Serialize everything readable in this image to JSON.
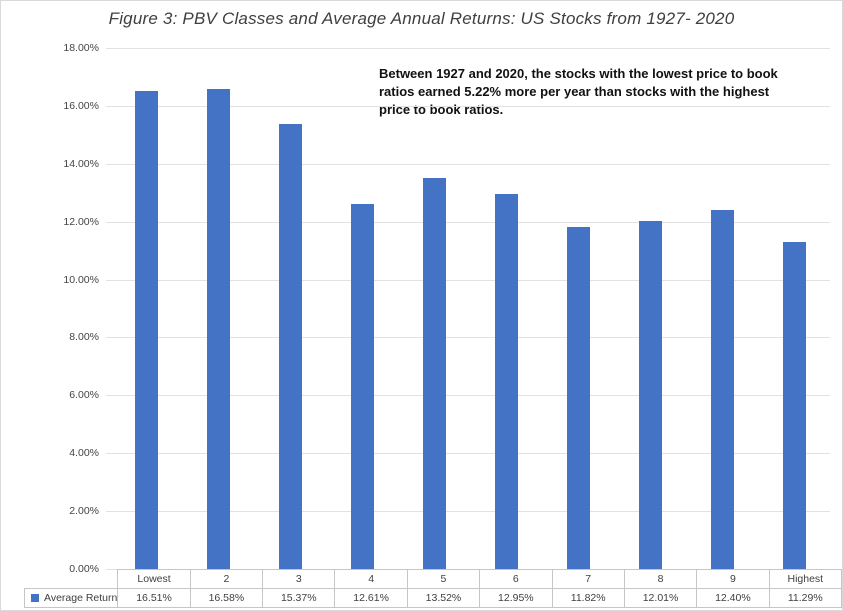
{
  "title": "Figure 3: PBV Classes and Average Annual Returns: US Stocks from 1927- 2020",
  "annotation": "Between 1927 and 2020, the stocks with the lowest price to book ratios earned 5.22% more per year than stocks with the highest price to book ratios.",
  "legend": {
    "label": "Average Return",
    "marker_color": "#4472C4"
  },
  "colors": {
    "bar": "#4472C4",
    "gridline": "#e2e2e2",
    "table_border": "#c6c6c6",
    "axis_text": "#444444",
    "title_text": "#3f3f3f",
    "annotation_text": "#111111",
    "frame_border": "#d9d9d9"
  },
  "chart_data": {
    "type": "bar",
    "title": "Figure 3: PBV Classes and Average Annual Returns: US Stocks from 1927- 2020",
    "xlabel": "",
    "ylabel": "",
    "categories": [
      "Lowest",
      "2",
      "3",
      "4",
      "5",
      "6",
      "7",
      "8",
      "9",
      "Highest"
    ],
    "series": [
      {
        "name": "Average Return",
        "values": [
          16.51,
          16.58,
          15.37,
          12.61,
          13.52,
          12.95,
          11.82,
          12.01,
          12.4,
          11.29
        ],
        "value_labels": [
          "16.51%",
          "16.58%",
          "15.37%",
          "12.61%",
          "13.52%",
          "12.95%",
          "11.82%",
          "12.01%",
          "12.40%",
          "11.29%"
        ]
      }
    ],
    "ylim": [
      0,
      18
    ],
    "y_ticks": [
      "18.00%",
      "16.00%",
      "14.00%",
      "12.00%",
      "10.00%",
      "8.00%",
      "6.00%",
      "4.00%",
      "2.00%",
      "0.00%"
    ],
    "y_tick_values": [
      18,
      16,
      14,
      12,
      10,
      8,
      6,
      4,
      2,
      0
    ],
    "grid": true,
    "legend_position": "bottom-left-table"
  }
}
